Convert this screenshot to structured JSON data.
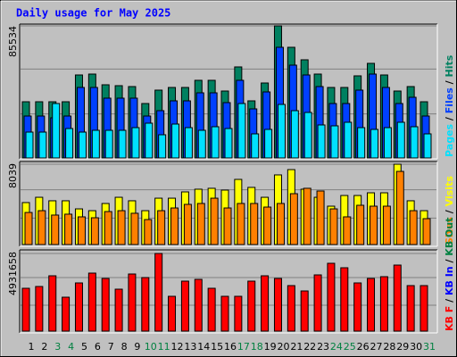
{
  "chart_data": {
    "type": "bar",
    "title": "Daily usage for May 2025",
    "categories": [
      "1",
      "2",
      "3",
      "4",
      "5",
      "6",
      "7",
      "8",
      "9",
      "10",
      "11",
      "12",
      "13",
      "14",
      "15",
      "16",
      "17",
      "18",
      "19",
      "20",
      "21",
      "22",
      "23",
      "24",
      "25",
      "26",
      "27",
      "28",
      "29",
      "30",
      "31"
    ],
    "category_colors": [
      "#000000",
      "#000000",
      "#008040",
      "#008040",
      "#000000",
      "#000000",
      "#000000",
      "#000000",
      "#000000",
      "#008040",
      "#008040",
      "#000000",
      "#000000",
      "#000000",
      "#000000",
      "#000000",
      "#008040",
      "#008040",
      "#000000",
      "#000000",
      "#000000",
      "#000000",
      "#000000",
      "#008040",
      "#008040",
      "#000000",
      "#000000",
      "#000000",
      "#000000",
      "#000000",
      "#008040"
    ],
    "legend_separator": " / ",
    "panels": [
      {
        "ylim": [
          0,
          85534
        ],
        "yticks": [
          85534
        ],
        "series": [
          {
            "name": "Pages",
            "color": "#00e0ff",
            "values": [
              16760,
              16760,
              35260,
              19070,
              16760,
              17920,
              17920,
              17920,
              19650,
              22540,
              15030,
              21960,
              19650,
              17920,
              20230,
              19070,
              35260,
              15610,
              18500,
              34680,
              30630,
              29480,
              21390,
              20810,
              23120,
              19650,
              18500,
              19650,
              23120,
              20230,
              15610
            ]
          },
          {
            "name": "Files",
            "color": "#0040ff",
            "values": [
              27170,
              27170,
              26010,
              27170,
              45660,
              45660,
              38730,
              38730,
              38730,
              27170,
              30630,
              36990,
              36990,
              42190,
              42190,
              35840,
              50290,
              31790,
              42770,
              71670,
              60110,
              53750,
              46240,
              35260,
              35260,
              43930,
              54330,
              45660,
              35260,
              39300,
              27170
            ]
          },
          {
            "name": "Hits",
            "color": "#008060",
            "values": [
              36410,
              36410,
              36410,
              36410,
              53750,
              54330,
              47400,
              46820,
              46240,
              35260,
              43930,
              45660,
              45660,
              50290,
              50290,
              43350,
              58960,
              36990,
              48550,
              85534,
              71670,
              63580,
              54330,
              45660,
              45660,
              53180,
              61270,
              53750,
              43350,
              46240,
              36410
            ]
          }
        ]
      },
      {
        "ylim": [
          0,
          8039
        ],
        "yticks": [
          8039
        ],
        "series": [
          {
            "name": "Sites",
            "color": "#ff8000",
            "values": [
              3210,
              3390,
              2950,
              3040,
              2770,
              2680,
              3300,
              3390,
              3130,
              2500,
              3390,
              3660,
              4020,
              4110,
              4640,
              3660,
              4110,
              4110,
              3750,
              4110,
              5090,
              5630,
              5360,
              3570,
              2770,
              3930,
              3840,
              3840,
              7320,
              3390,
              2590
            ]
          },
          {
            "name": "Visits",
            "color": "#ffff00",
            "values": [
              4200,
              4730,
              4380,
              4380,
              3570,
              3390,
              4110,
              4730,
              4380,
              3390,
              4640,
              4640,
              5270,
              5540,
              5630,
              5450,
              6520,
              5720,
              4730,
              6970,
              7500,
              5540,
              4730,
              3840,
              4910,
              4910,
              5180,
              5180,
              8039,
              4380,
              3390
            ]
          }
        ]
      },
      {
        "ylim": [
          0,
          4931658
        ],
        "yticks": [
          4931658
        ],
        "series": [
          {
            "name": "KB F",
            "color": "#ff0000",
            "values": [
              2720900,
              2834300,
              3514500,
              2154100,
              3061000,
              3684600,
              3344500,
              2664200,
              3627900,
              3401200,
              4931658,
              2210800,
              3174400,
              3287800,
              2720900,
              2210800,
              2210800,
              3174400,
              3514500,
              3344500,
              2891000,
              2550900,
              3571200,
              4308100,
              4024700,
              3061000,
              3344500,
              3457800,
              4194800,
              2891000,
              2891000
            ]
          },
          {
            "name": "KB In",
            "color": "#0000ff"
          },
          {
            "name": "KB Out",
            "color": "#008040"
          }
        ]
      }
    ]
  }
}
